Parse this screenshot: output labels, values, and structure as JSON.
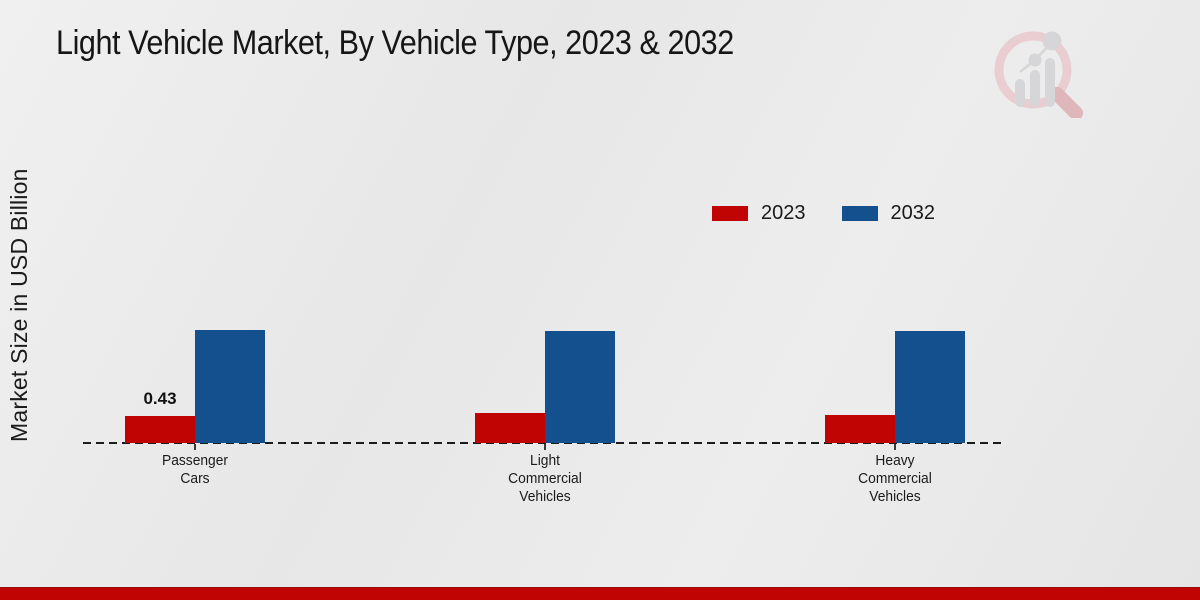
{
  "title": "Light Vehicle Market, By Vehicle Type, 2023 & 2032",
  "y_axis_label": "Market Size in USD Billion",
  "logo": {
    "name": "market-research-future-watermark"
  },
  "footer": {
    "bar_color": "#c00404"
  },
  "chart_data": {
    "type": "bar",
    "title": "Light Vehicle Market, By Vehicle Type, 2023 & 2032",
    "ylabel": "Market Size in USD Billion",
    "xlabel": "",
    "categories": [
      "Passenger Cars",
      "Light Commercial Vehicles",
      "Heavy Commercial Vehicles"
    ],
    "category_label_lines": [
      [
        "Passenger",
        "Cars"
      ],
      [
        "Light",
        "Commercial",
        "Vehicles"
      ],
      [
        "Heavy",
        "Commercial",
        "Vehicles"
      ]
    ],
    "series": [
      {
        "name": "2023",
        "color": "#c00303",
        "values": [
          0.43,
          0.48,
          0.45
        ],
        "data_labels": [
          "0.43",
          null,
          null
        ]
      },
      {
        "name": "2032",
        "color": "#15508e",
        "values": [
          1.8,
          1.78,
          1.79
        ],
        "data_labels": [
          null,
          null,
          null
        ]
      }
    ],
    "ylim": [
      0,
      2
    ],
    "grid": false,
    "y_axis_ticks_visible": false,
    "baseline_style": "dashed",
    "legend_position": "top-right",
    "legend": [
      "2023",
      "2032"
    ]
  }
}
